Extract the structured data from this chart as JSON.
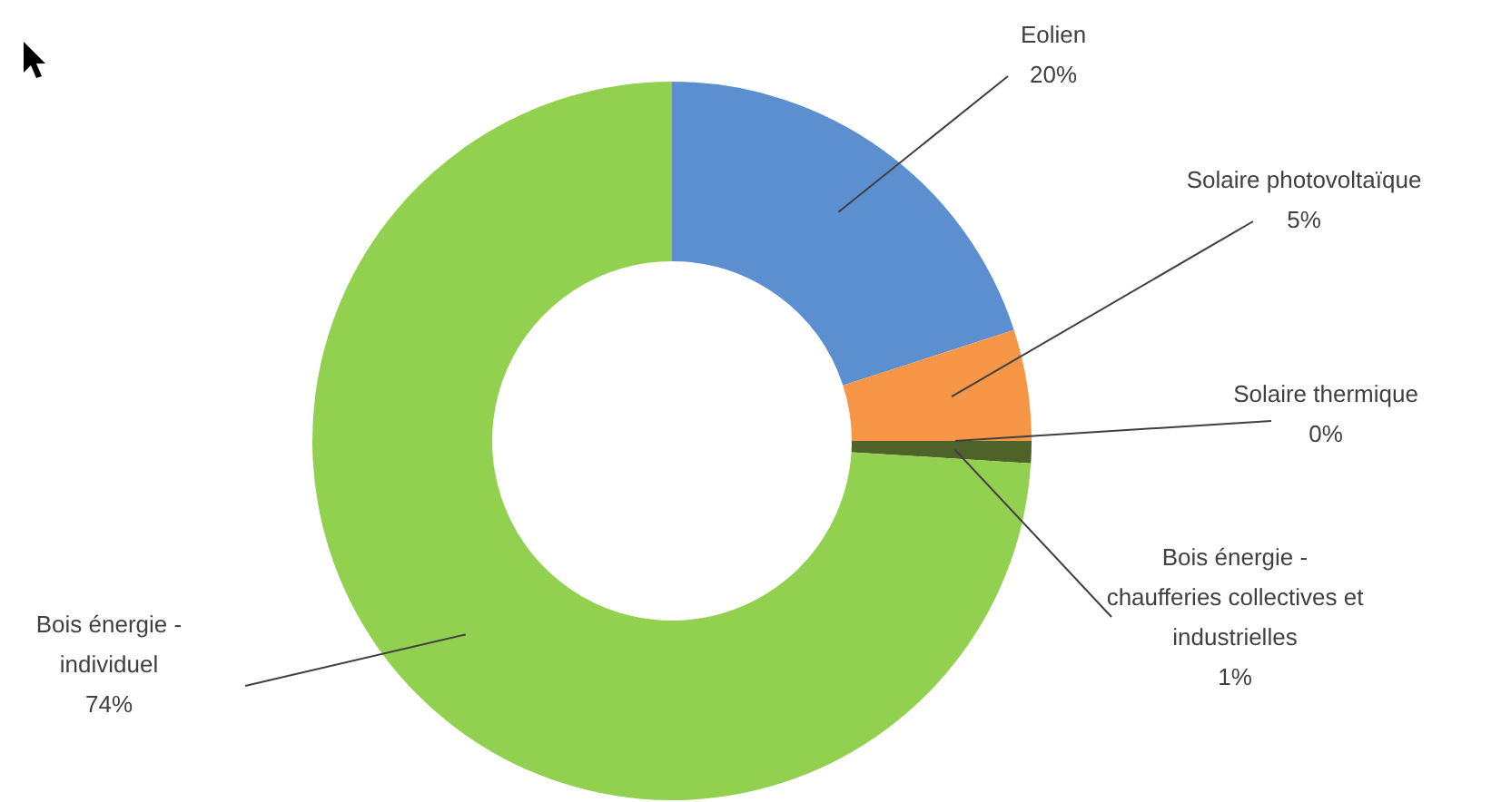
{
  "chart_data": {
    "type": "donut",
    "categories": [
      "Eolien",
      "Solaire photovoltaïque",
      "Solaire thermique",
      "Bois énergie - chaufferies collectives et industrielles",
      "Bois énergie - individuel"
    ],
    "values": [
      20,
      5,
      0,
      1,
      74
    ],
    "value_labels": [
      "20%",
      "5%",
      "0%",
      "1%",
      "74%"
    ],
    "colors": [
      "#5b8fcf",
      "#f79646",
      "#ffd21f",
      "#4f6228",
      "#92d050"
    ],
    "legend": false
  }
}
